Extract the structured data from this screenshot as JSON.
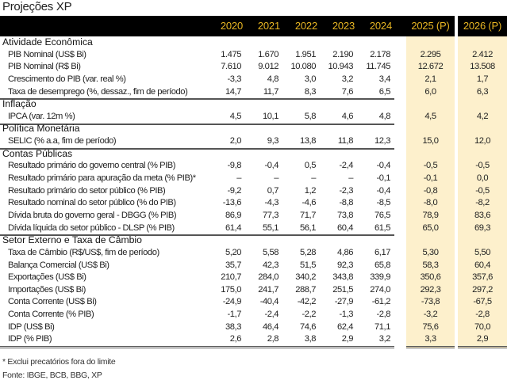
{
  "title": "Projeções XP",
  "years": [
    "2020",
    "2021",
    "2022",
    "2023",
    "2024",
    "2025 (P)",
    "2026 (P)"
  ],
  "sections": [
    {
      "name": "Atividade Econômica",
      "rows": [
        {
          "label": "PIB Nominal (US$ Bi)",
          "values": [
            "1.475",
            "1.670",
            "1.951",
            "2.190",
            "2.178",
            "2.295",
            "2.412"
          ]
        },
        {
          "label": "PIB Nominal (R$ Bi)",
          "values": [
            "7.610",
            "9.012",
            "10.080",
            "10.943",
            "11.745",
            "12.672",
            "13.508"
          ]
        },
        {
          "label": "Crescimento do PIB (var. real %)",
          "values": [
            "-3,3",
            "4,8",
            "3,0",
            "3,2",
            "3,4",
            "2,1",
            "1,7"
          ]
        },
        {
          "label": "Taxa de desemprego (%, dessaz., fim de período)",
          "values": [
            "14,7",
            "11,7",
            "8,3",
            "7,6",
            "6,5",
            "6,0",
            "6,3"
          ]
        }
      ]
    },
    {
      "name": "Inflação",
      "rows": [
        {
          "label": "IPCA (var. 12m %)",
          "values": [
            "4,5",
            "10,1",
            "5,8",
            "4,6",
            "4,8",
            "4,5",
            "4,2"
          ]
        }
      ]
    },
    {
      "name": "Política Monetária",
      "rows": [
        {
          "label": "SELIC (% a.a, fim de período)",
          "values": [
            "2,0",
            "9,3",
            "13,8",
            "11,8",
            "12,3",
            "15,0",
            "12,0"
          ]
        }
      ]
    },
    {
      "name": "Contas Públicas",
      "rows": [
        {
          "label": "Resultado primário do governo central (% PIB)",
          "values": [
            "-9,8",
            "-0,4",
            "0,5",
            "-2,4",
            "-0,4",
            "-0,5",
            "-0,5"
          ]
        },
        {
          "label": "Resultado primário para apuração da meta (% PIB)*",
          "values": [
            "–",
            "–",
            "–",
            "–",
            "-0,1",
            "-0,1",
            "0,0"
          ]
        },
        {
          "label": "Resultado primário do setor público (% PIB)",
          "values": [
            "-9,2",
            "0,7",
            "1,2",
            "-2,3",
            "-0,4",
            "-0,8",
            "-0,5"
          ]
        },
        {
          "label": "Resultado nominal do setor público (% do PIB)",
          "values": [
            "-13,6",
            "-4,3",
            "-4,6",
            "-8,8",
            "-8,5",
            "-8,0",
            "-8,2"
          ]
        },
        {
          "label": "Dívida bruta do governo geral - DBGG (% PIB)",
          "values": [
            "86,9",
            "77,3",
            "71,7",
            "73,8",
            "76,5",
            "78,9",
            "83,6"
          ]
        },
        {
          "label": "Dívida líquida do setor público - DLSP (% PIB)",
          "values": [
            "61,4",
            "55,1",
            "56,1",
            "60,4",
            "61,5",
            "65,0",
            "69,3"
          ]
        }
      ]
    },
    {
      "name": "Setor Externo e Taxa de Câmbio",
      "rows": [
        {
          "label": "Taxa de Câmbio (R$/US$, fim de período)",
          "values": [
            "5,20",
            "5,58",
            "5,28",
            "4,86",
            "6,17",
            "5,30",
            "5,50"
          ]
        },
        {
          "label": "Balança Comercial (US$ Bi)",
          "values": [
            "35,7",
            "42,3",
            "51,5",
            "92,3",
            "65,8",
            "58,3",
            "60,4"
          ]
        },
        {
          "label": "Exportações (US$ Bi)",
          "values": [
            "210,7",
            "284,0",
            "340,2",
            "343,8",
            "339,9",
            "350,6",
            "357,6"
          ]
        },
        {
          "label": "Importações (US$ Bi)",
          "values": [
            "175,0",
            "241,7",
            "288,7",
            "251,5",
            "274,0",
            "292,3",
            "297,2"
          ]
        },
        {
          "label": "Conta Corrente (US$ Bi)",
          "values": [
            "-24,9",
            "-40,4",
            "-42,2",
            "-27,9",
            "-61,2",
            "-73,8",
            "-67,5"
          ]
        },
        {
          "label": "Conta Corrente (% PIB)",
          "values": [
            "-1,7",
            "-2,4",
            "-2,2",
            "-1,3",
            "-2,8",
            "-3,2",
            "-2,8"
          ]
        },
        {
          "label": "IDP (US$ Bi)",
          "values": [
            "38,3",
            "46,4",
            "74,6",
            "62,4",
            "71,1",
            "75,6",
            "70,0"
          ]
        },
        {
          "label": "IDP (% PIB)",
          "values": [
            "2,6",
            "2,8",
            "3,8",
            "2,9",
            "3,2",
            "3,3",
            "2,9"
          ]
        }
      ]
    }
  ],
  "footnote": "* Exclui precatórios fora do limite",
  "source": "Fonte: IBGE, BCB, BBG, XP",
  "colors": {
    "header_bg": "#000000",
    "header_text": "#e8b623",
    "projection_bg": "#fdf0cc"
  }
}
